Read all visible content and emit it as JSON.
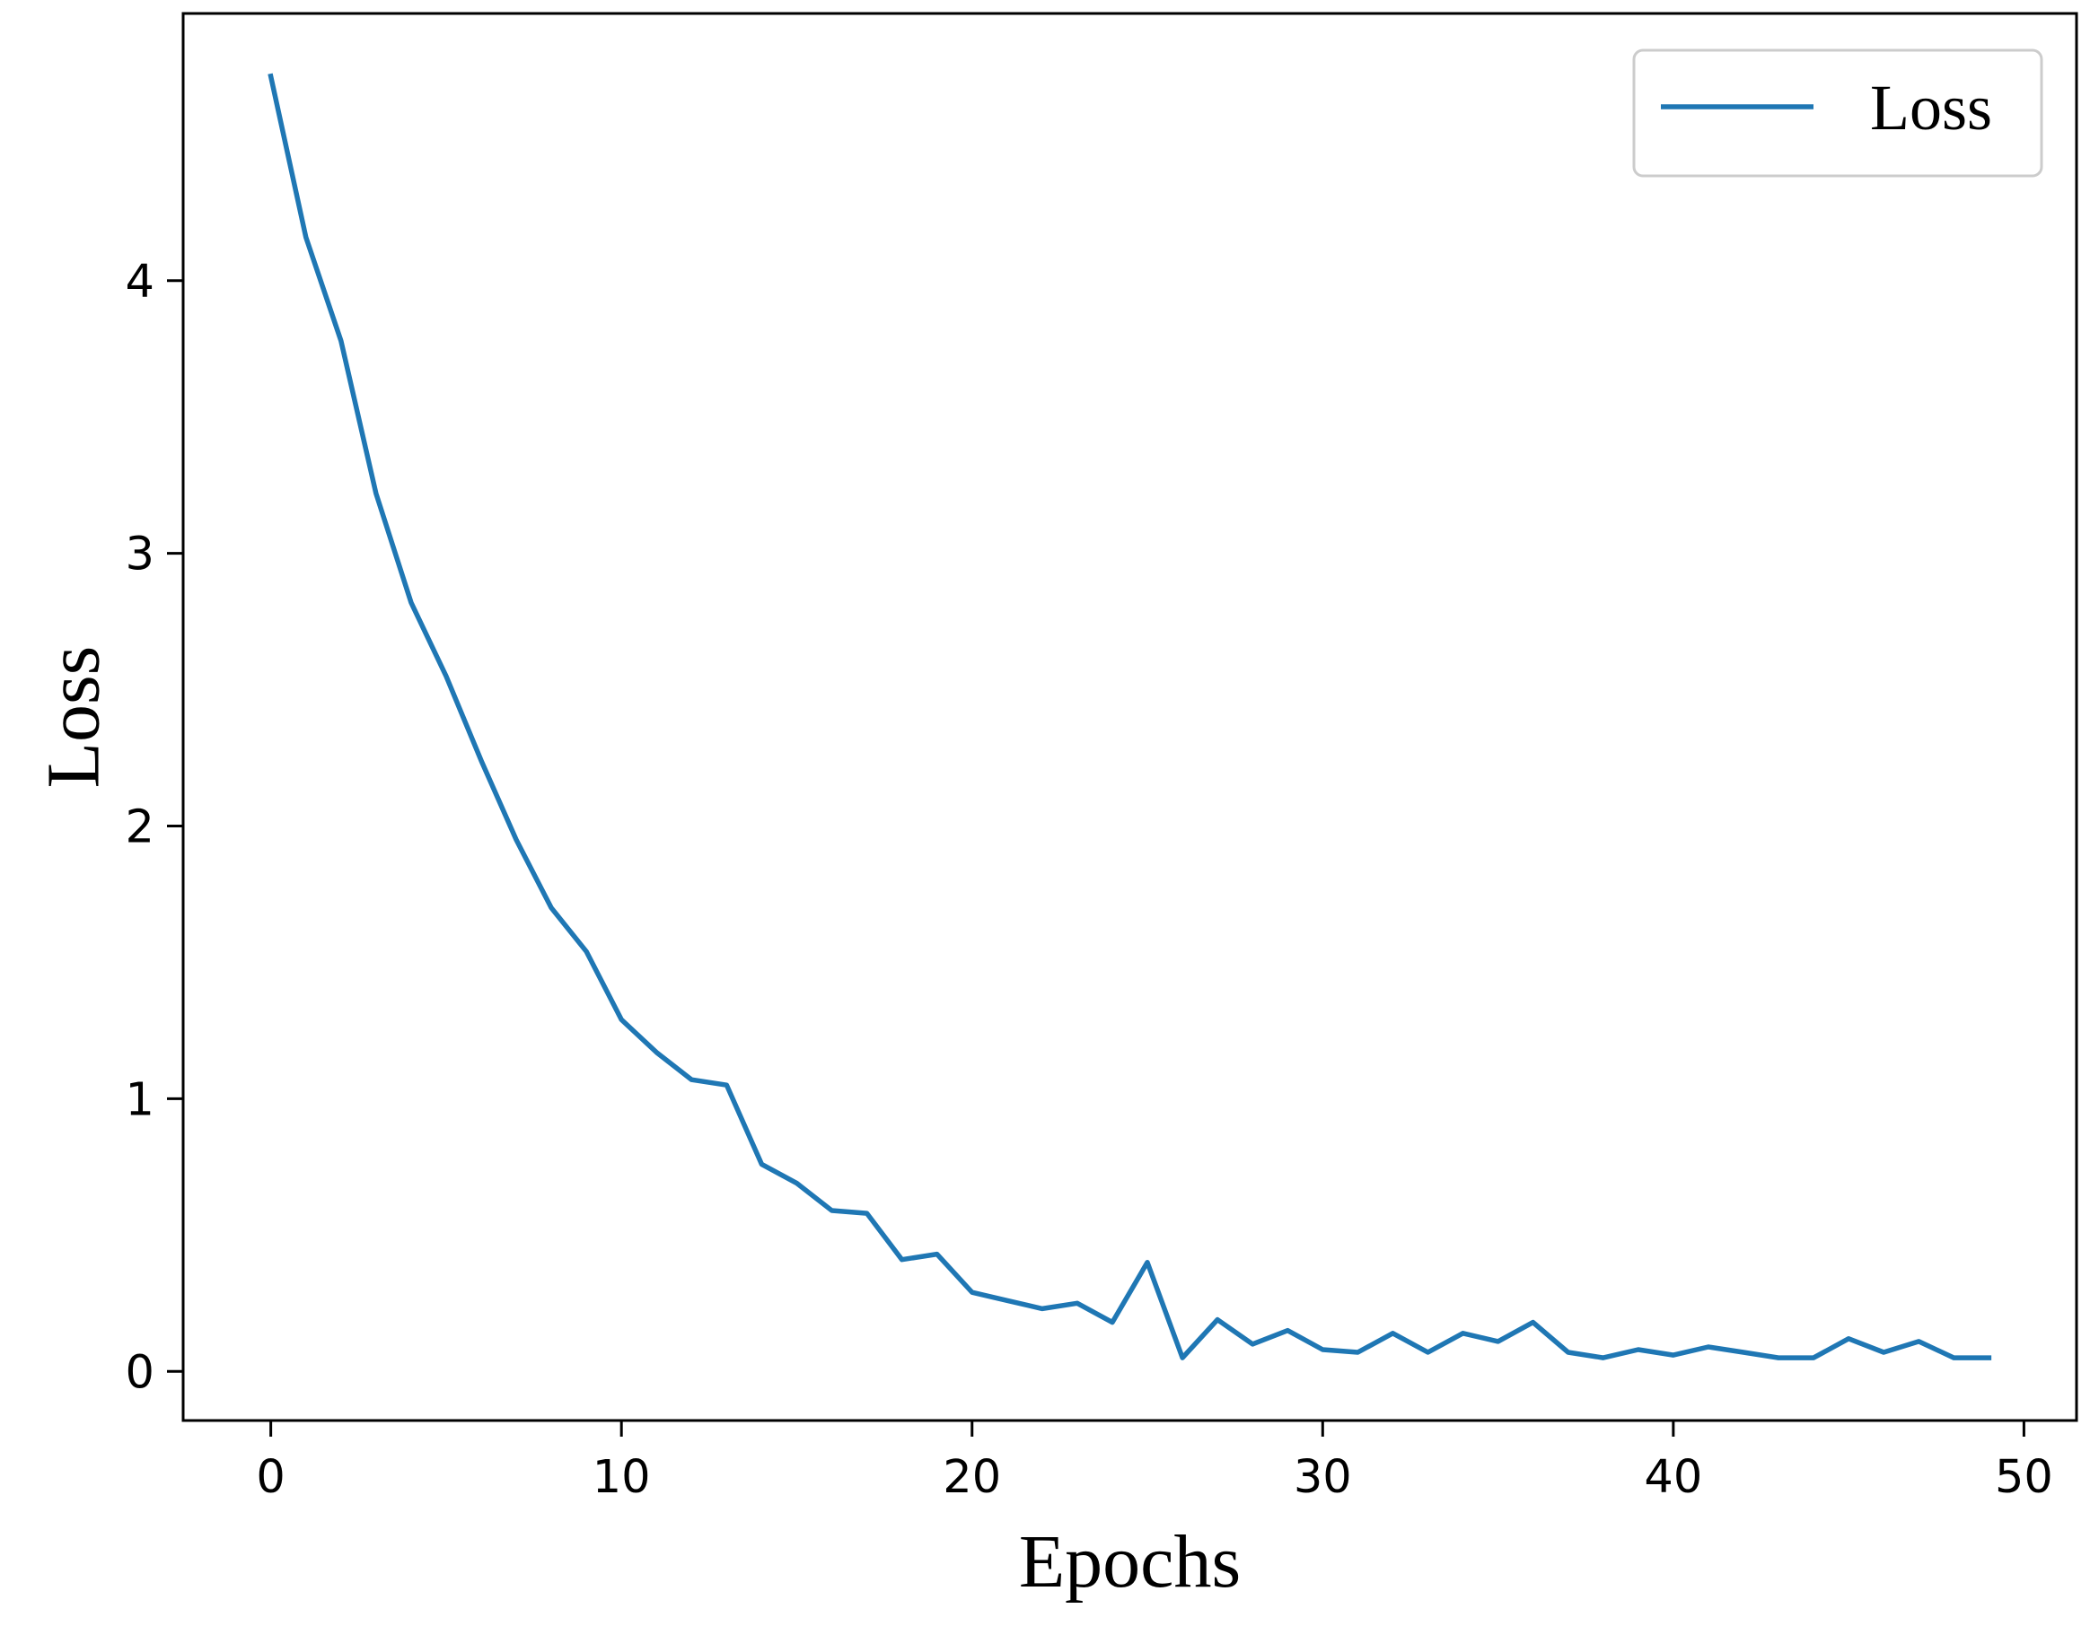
{
  "chart_data": {
    "type": "line",
    "title": "",
    "xlabel": "Epochs",
    "ylabel": "Loss",
    "xlim": [
      -2.5,
      51.5
    ],
    "ylim": [
      -0.18,
      4.98
    ],
    "xticks": [
      0,
      10,
      20,
      30,
      40,
      50
    ],
    "yticks": [
      0,
      1,
      2,
      3,
      4
    ],
    "xtick_labels": [
      "0",
      "10",
      "20",
      "30",
      "40",
      "50"
    ],
    "ytick_labels": [
      "0",
      "1",
      "2",
      "3",
      "4"
    ],
    "grid": false,
    "legend_position": "top-right",
    "colors": {
      "series": "#1f77b4",
      "axes": "#000000",
      "legend_border": "#cccccc"
    },
    "x": [
      0,
      1,
      2,
      3,
      4,
      5,
      6,
      7,
      8,
      9,
      10,
      11,
      12,
      13,
      14,
      15,
      16,
      17,
      18,
      19,
      20,
      21,
      22,
      23,
      24,
      25,
      26,
      27,
      28,
      29,
      30,
      31,
      32,
      33,
      34,
      35,
      36,
      37,
      38,
      39,
      40,
      41,
      42,
      43,
      44,
      45,
      46,
      47,
      48,
      49
    ],
    "series": [
      {
        "name": "Loss",
        "values": [
          4.75,
          4.16,
          3.78,
          3.22,
          2.82,
          2.55,
          2.24,
          1.95,
          1.7,
          1.54,
          1.29,
          1.17,
          1.07,
          1.05,
          0.76,
          0.69,
          0.59,
          0.58,
          0.41,
          0.43,
          0.29,
          0.26,
          0.23,
          0.25,
          0.18,
          0.4,
          0.05,
          0.19,
          0.1,
          0.15,
          0.08,
          0.07,
          0.14,
          0.07,
          0.14,
          0.11,
          0.18,
          0.07,
          0.05,
          0.08,
          0.06,
          0.09,
          0.07,
          0.05,
          0.05,
          0.12,
          0.07,
          0.11,
          0.05,
          0.05
        ]
      }
    ]
  }
}
